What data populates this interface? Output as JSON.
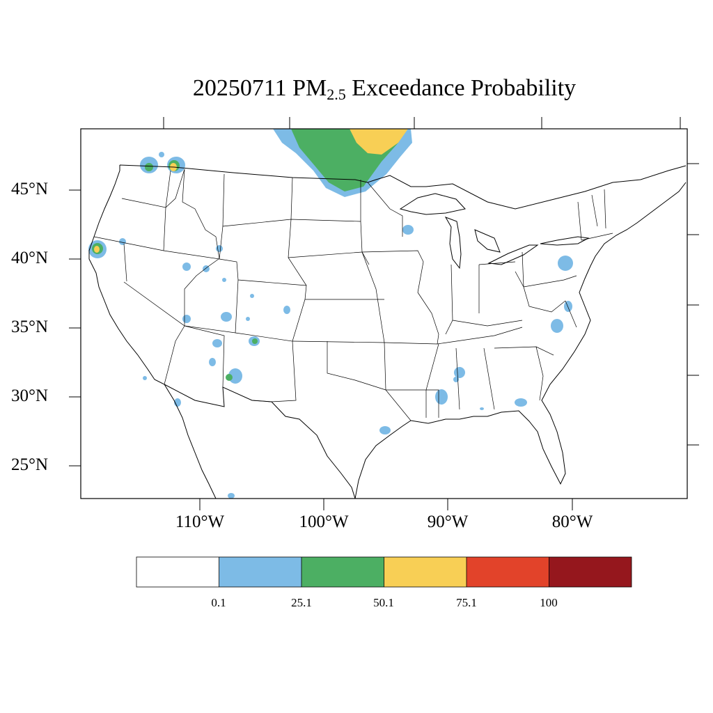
{
  "title": {
    "prefix": "20250711 PM",
    "subscript": "2.5",
    "suffix": " Exceedance Probability"
  },
  "map": {
    "region": "Contiguous United States",
    "projection": "lambert-conformal",
    "lat_labels": [
      "45°N",
      "40°N",
      "35°N",
      "30°N",
      "25°N"
    ],
    "lon_labels": [
      "110°W",
      "100°W",
      "90°W",
      "80°W"
    ],
    "colors": {
      "bin_0": "#ffffff",
      "bin_1": "#7dbbe6",
      "bin_2": "#4caf63",
      "bin_3": "#f8cf55",
      "bin_4": "#e2432a",
      "bin_5": "#95171d"
    }
  },
  "colorbar": {
    "labels": [
      "0.1",
      "25.1",
      "50.1",
      "75.1",
      "100"
    ]
  }
}
